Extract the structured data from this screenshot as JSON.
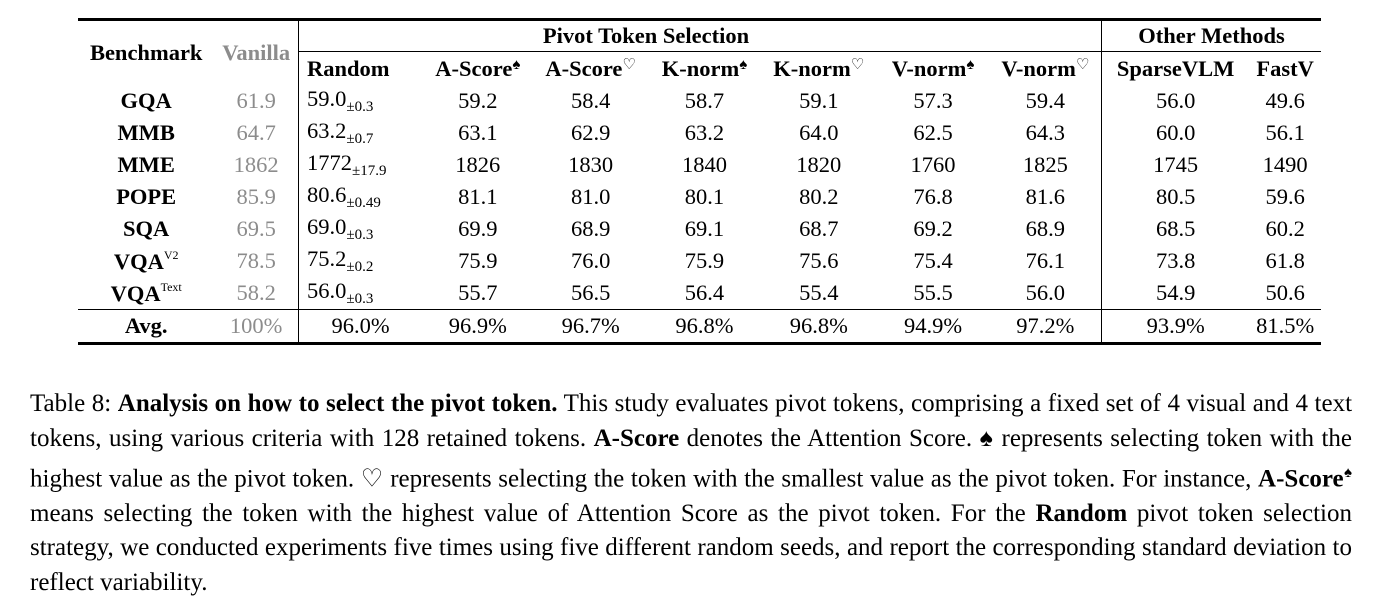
{
  "table": {
    "header": {
      "benchmark": "Benchmark",
      "vanilla": "Vanilla",
      "group_pivot": "Pivot Token Selection",
      "group_other": "Other Methods",
      "cols": [
        {
          "name": "Random",
          "sym": ""
        },
        {
          "name": "A-Score",
          "sym": "♠"
        },
        {
          "name": "A-Score",
          "sym": "♡"
        },
        {
          "name": "K-norm",
          "sym": "♠"
        },
        {
          "name": "K-norm",
          "sym": "♡"
        },
        {
          "name": "V-norm",
          "sym": "♠"
        },
        {
          "name": "V-norm",
          "sym": "♡"
        },
        {
          "name": "SparseVLM",
          "sym": ""
        },
        {
          "name": "FastV",
          "sym": ""
        }
      ]
    },
    "rows": [
      {
        "bench": "GQA",
        "sup": "",
        "vanilla": "61.9",
        "random": "59.0",
        "sd": "±0.3",
        "vals": [
          "59.2",
          "58.4",
          "58.7",
          "59.1",
          "57.3",
          "59.4",
          "56.0",
          "49.6"
        ]
      },
      {
        "bench": "MMB",
        "sup": "",
        "vanilla": "64.7",
        "random": "63.2",
        "sd": "±0.7",
        "vals": [
          "63.1",
          "62.9",
          "63.2",
          "64.0",
          "62.5",
          "64.3",
          "60.0",
          "56.1"
        ]
      },
      {
        "bench": "MME",
        "sup": "",
        "vanilla": "1862",
        "random": "1772",
        "sd": "±17.9",
        "vals": [
          "1826",
          "1830",
          "1840",
          "1820",
          "1760",
          "1825",
          "1745",
          "1490"
        ]
      },
      {
        "bench": "POPE",
        "sup": "",
        "vanilla": "85.9",
        "random": "80.6",
        "sd": "±0.49",
        "vals": [
          "81.1",
          "81.0",
          "80.1",
          "80.2",
          "76.8",
          "81.6",
          "80.5",
          "59.6"
        ]
      },
      {
        "bench": "SQA",
        "sup": "",
        "vanilla": "69.5",
        "random": "69.0",
        "sd": "±0.3",
        "vals": [
          "69.9",
          "68.9",
          "69.1",
          "68.7",
          "69.2",
          "68.9",
          "68.5",
          "60.2"
        ]
      },
      {
        "bench": "VQA",
        "sup": "V2",
        "vanilla": "78.5",
        "random": "75.2",
        "sd": "±0.2",
        "vals": [
          "75.9",
          "76.0",
          "75.9",
          "75.6",
          "75.4",
          "76.1",
          "73.8",
          "61.8"
        ]
      },
      {
        "bench": "VQA",
        "sup": "Text",
        "vanilla": "58.2",
        "random": "56.0",
        "sd": "±0.3",
        "vals": [
          "55.7",
          "56.5",
          "56.4",
          "55.4",
          "55.5",
          "56.0",
          "54.9",
          "50.6"
        ]
      }
    ],
    "avg": {
      "bench": "Avg.",
      "vanilla": "100%",
      "random": "96.0%",
      "vals": [
        "96.9%",
        "96.7%",
        "96.8%",
        "96.8%",
        "94.9%",
        "97.2%",
        "93.9%",
        "81.5%"
      ]
    }
  },
  "caption": {
    "label": "Table 8:",
    "title": "Analysis on how to select the pivot token.",
    "t1": " This study evaluates pivot tokens, comprising a fixed set of 4 visual and 4 text tokens, using various criteria with 128 retained tokens. ",
    "ascore": "A-Score",
    "t2": " denotes the Attention Score. ",
    "spade": "♠",
    "t3": " represents selecting token with the highest value as the pivot token. ",
    "heart": "♡",
    "t4": " represents selecting the token with the smallest value as the pivot token. For instance, ",
    "ascore2": "A-Score",
    "spade2": "♠",
    "t5": " means selecting the token with the highest value of Attention Score as the pivot token. For the ",
    "random": "Random",
    "t6": " pivot token selection strategy, we conducted experiments five times using five different random seeds, and report the corresponding standard deviation to reflect variability."
  }
}
